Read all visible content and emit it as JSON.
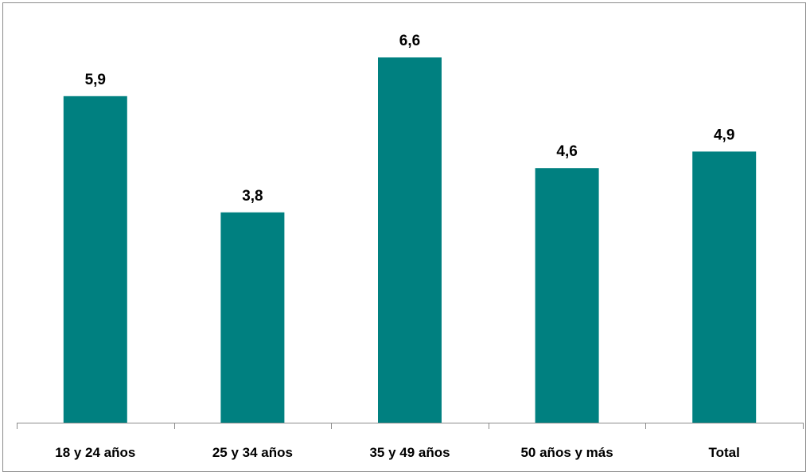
{
  "chart_data": {
    "type": "bar",
    "categories": [
      "18 y 24 años",
      "25 y 34 años",
      "35 y 49 años",
      "50 años y más",
      "Total"
    ],
    "series": [
      {
        "values": [
          5.9,
          3.8,
          6.6,
          4.6,
          4.9
        ],
        "value_labels": [
          "5,9",
          "3,8",
          "6,6",
          "4,6",
          "4,9"
        ],
        "color": "#008080"
      }
    ],
    "title": "",
    "xlabel": "",
    "ylabel": "",
    "ylim": [
      0,
      7.25
    ],
    "grid": false,
    "legend": "none",
    "y_axis_visible": false
  }
}
